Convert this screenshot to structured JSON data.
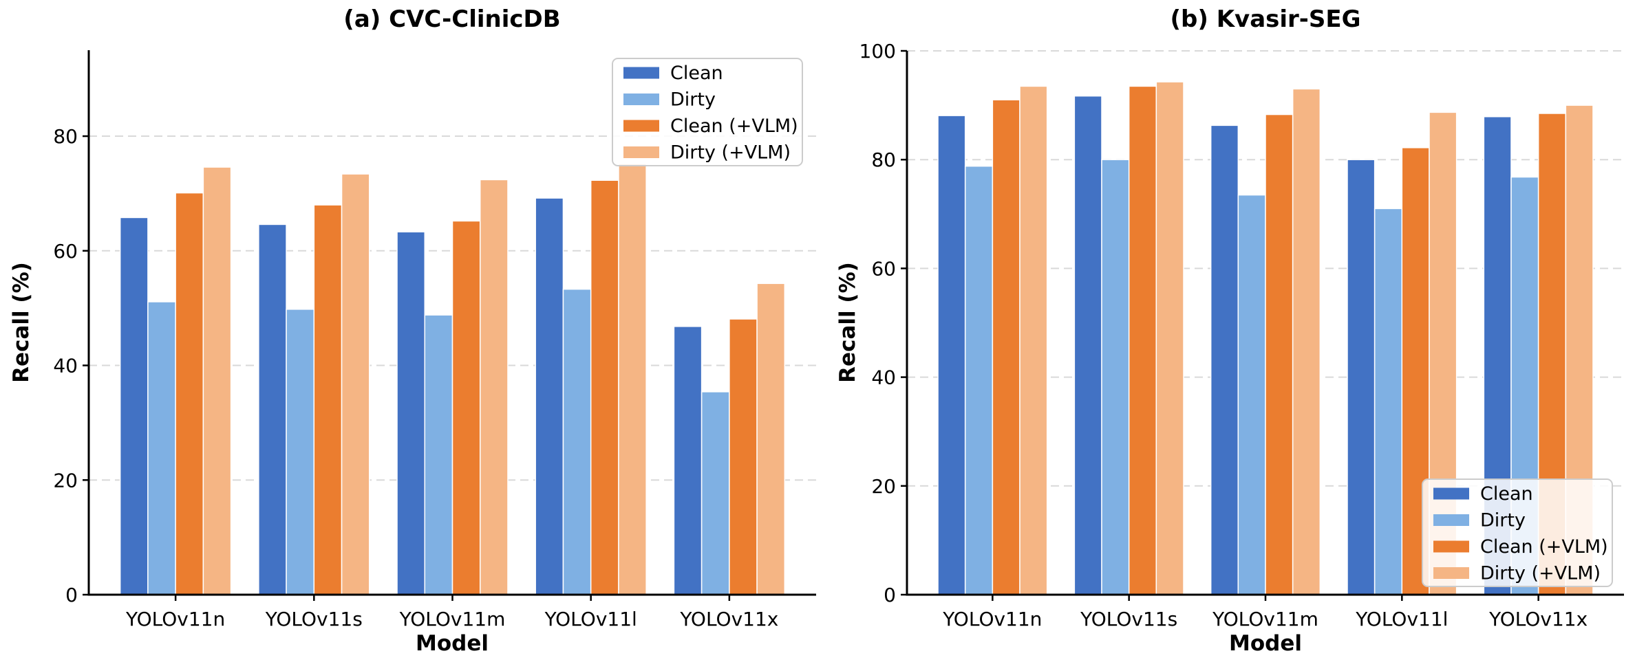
{
  "page": {
    "background": "#ffffff",
    "grid_color": "#d9d9d9",
    "axis_color": "#000000",
    "legend_border_color": "#cccccc"
  },
  "chart_data": [
    {
      "type": "bar",
      "title": "(a) CVC-ClinicDB",
      "xlabel": "Model",
      "ylabel": "Recall (%)",
      "categories": [
        "YOLOv11n",
        "YOLOv11s",
        "YOLOv11m",
        "YOLOv11l",
        "YOLOv11x"
      ],
      "series": [
        {
          "name": "Clean",
          "color": "#4272c4",
          "values": [
            65.8,
            64.6,
            63.3,
            69.2,
            46.8
          ]
        },
        {
          "name": "Dirty",
          "color": "#7fb0e3",
          "values": [
            51.1,
            49.8,
            48.8,
            53.3,
            35.4
          ]
        },
        {
          "name": "Clean (+VLM)",
          "color": "#eb7d2f",
          "values": [
            70.1,
            68.0,
            65.2,
            72.3,
            48.1
          ]
        },
        {
          "name": "Dirty (+VLM)",
          "color": "#f5b584",
          "values": [
            74.6,
            73.4,
            72.4,
            75.2,
            54.3
          ]
        }
      ],
      "ylim": [
        0,
        95
      ],
      "yticks": [
        0,
        20,
        40,
        60,
        80
      ],
      "grid": true,
      "legend_position": "upper-right"
    },
    {
      "type": "bar",
      "title": "(b) Kvasir-SEG",
      "xlabel": "Model",
      "ylabel": "Recall (%)",
      "categories": [
        "YOLOv11n",
        "YOLOv11s",
        "YOLOv11m",
        "YOLOv11l",
        "YOLOv11x"
      ],
      "series": [
        {
          "name": "Clean",
          "color": "#4272c4",
          "values": [
            88.1,
            91.7,
            86.3,
            80.0,
            87.9
          ]
        },
        {
          "name": "Dirty",
          "color": "#7fb0e3",
          "values": [
            78.8,
            80.0,
            73.5,
            71.0,
            76.8
          ]
        },
        {
          "name": "Clean (+VLM)",
          "color": "#eb7d2f",
          "values": [
            91.0,
            93.5,
            88.3,
            82.2,
            88.5
          ]
        },
        {
          "name": "Dirty (+VLM)",
          "color": "#f5b584",
          "values": [
            93.5,
            94.3,
            93.0,
            88.7,
            90.0
          ]
        }
      ],
      "ylim": [
        0,
        100
      ],
      "yticks": [
        0,
        20,
        40,
        60,
        80,
        100
      ],
      "grid": true,
      "legend_position": "lower-right"
    }
  ]
}
